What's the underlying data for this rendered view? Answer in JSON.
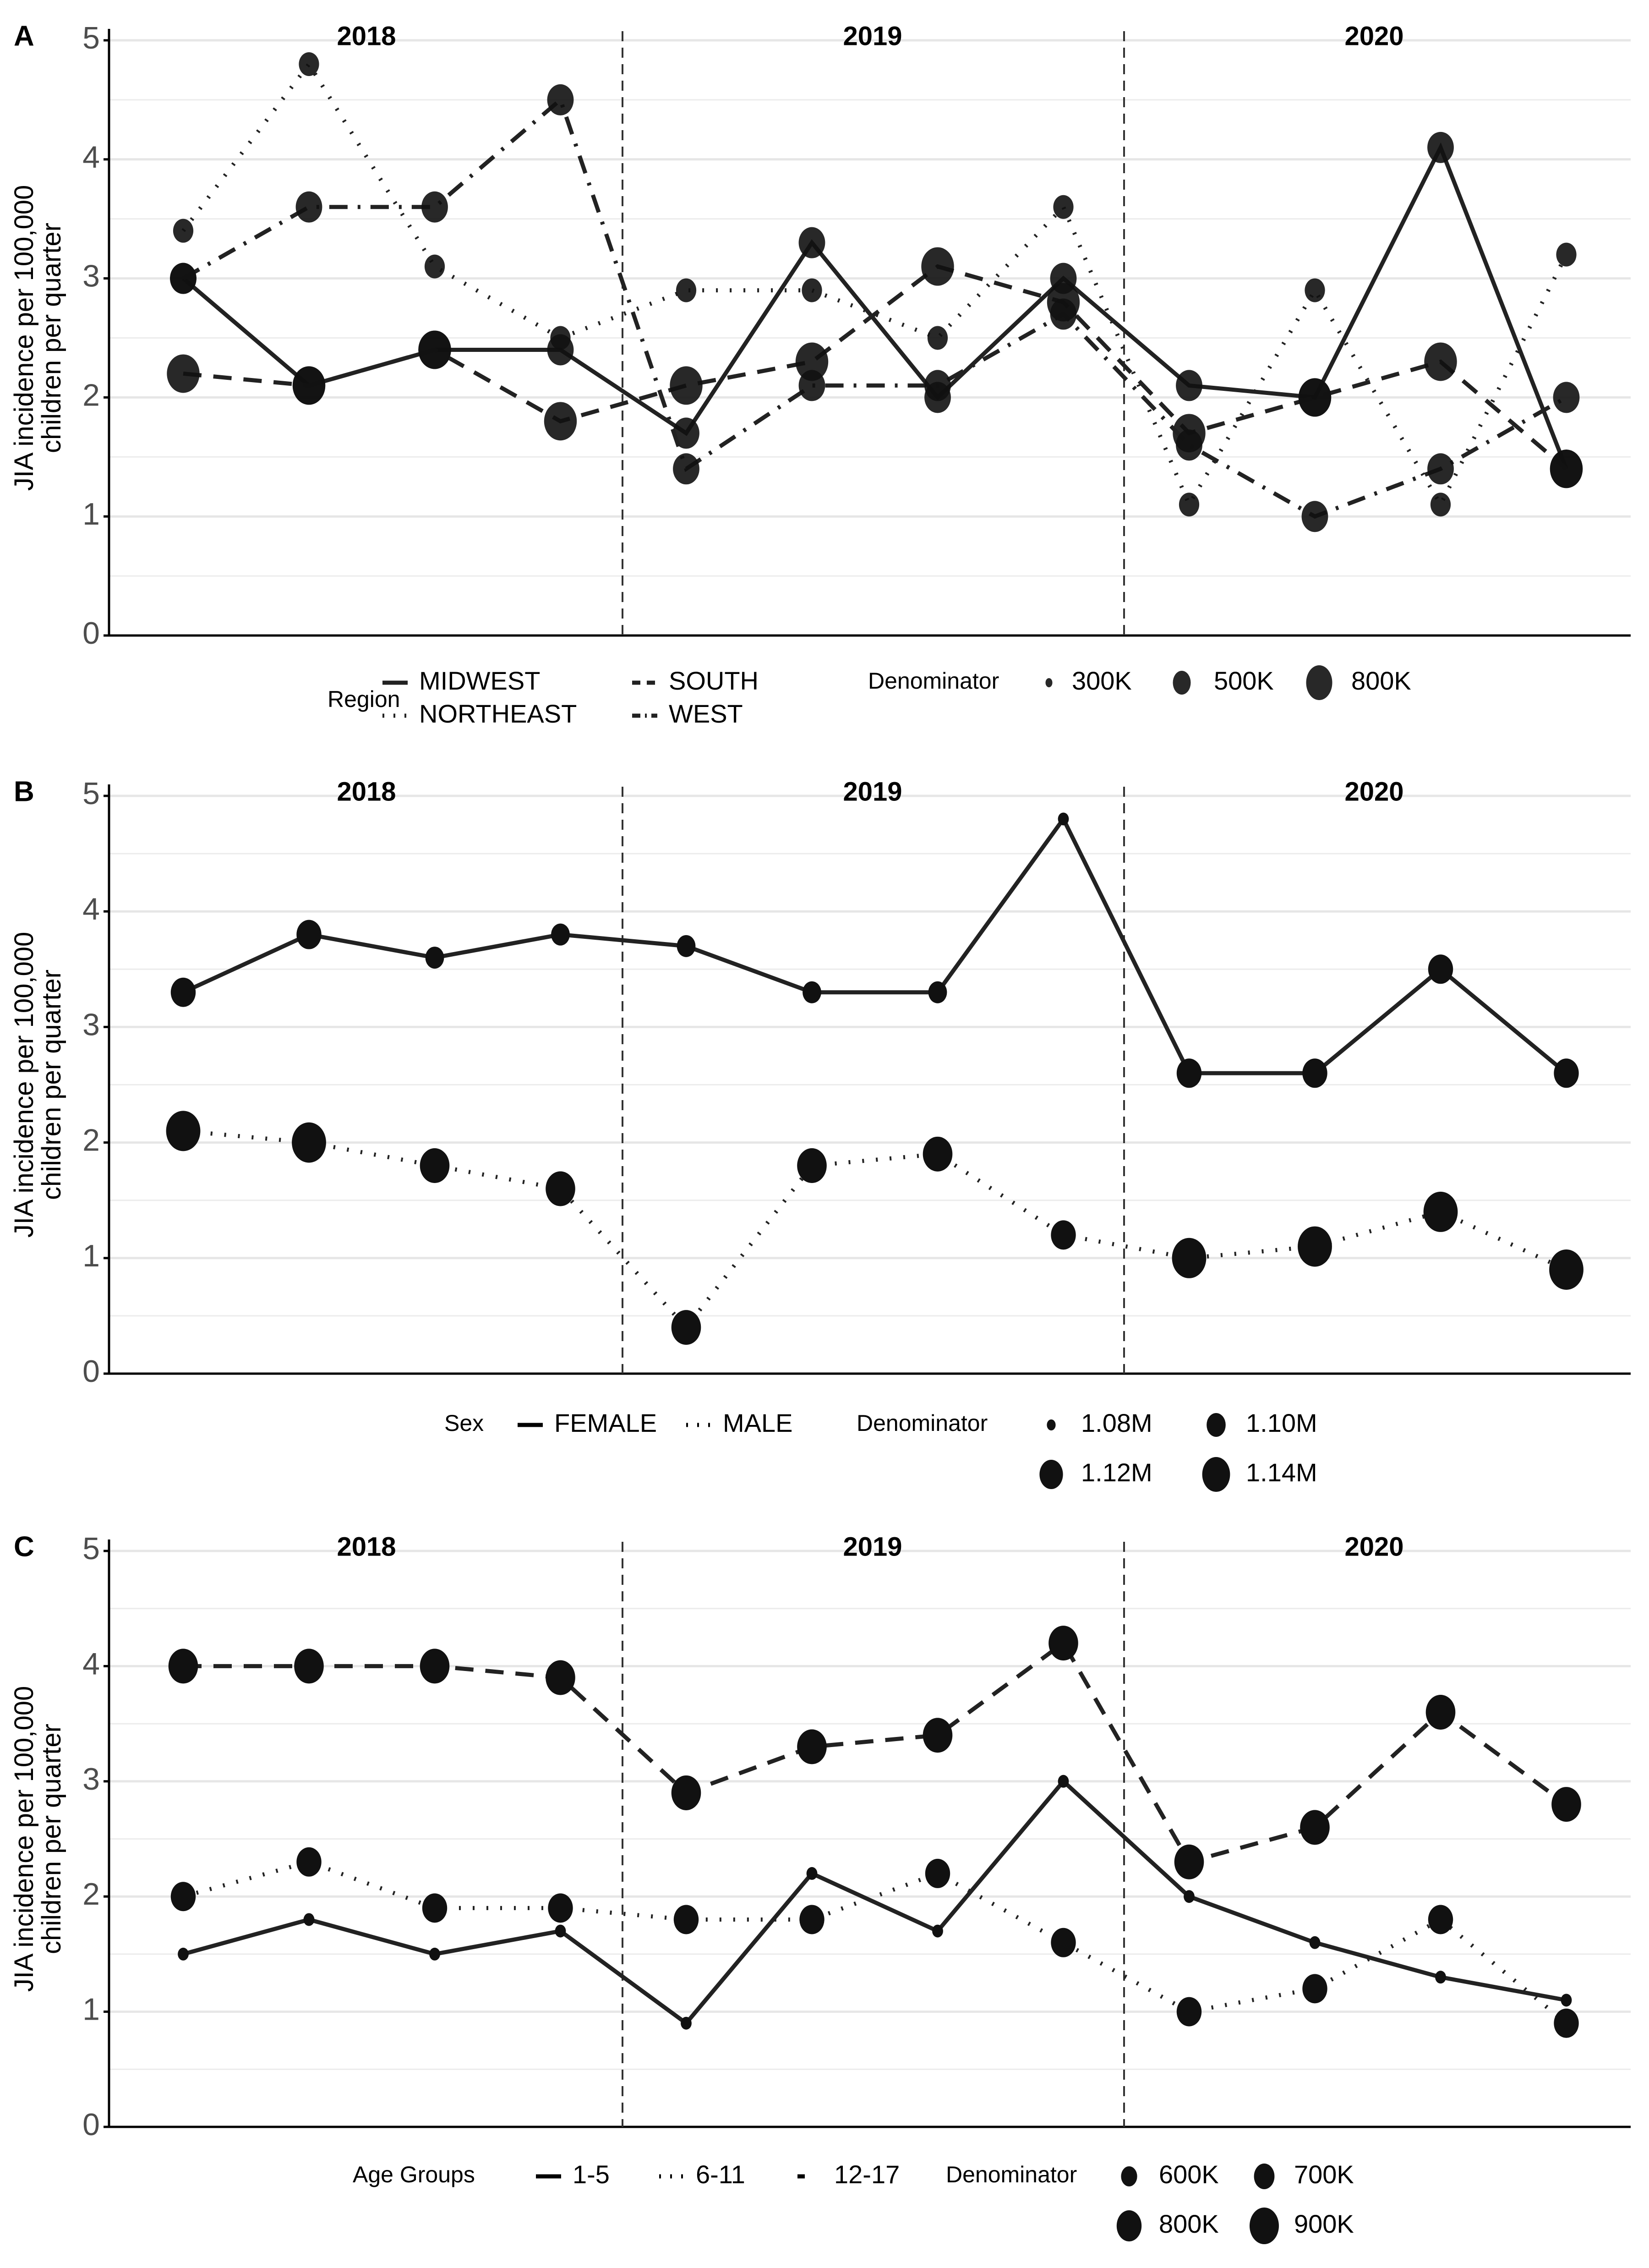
{
  "chart_data": [
    {
      "panel": "A",
      "type": "line",
      "ylabel": "JIA incidence per 100,000 children per quarter",
      "ylim": [
        0,
        5
      ],
      "yticks": [
        "0",
        "1",
        "2",
        "3",
        "4",
        "5"
      ],
      "years": [
        "2018",
        "2019",
        "2020"
      ],
      "x": [
        "2018 Q1",
        "2018 Q2",
        "2018 Q3",
        "2018 Q4",
        "2019 Q1",
        "2019 Q2",
        "2019 Q3",
        "2019 Q4",
        "2020 Q1",
        "2020 Q2",
        "2020 Q3",
        "2020 Q4"
      ],
      "grid": "horizontal",
      "legend_position": "bottom",
      "legend": {
        "group_title": "Region",
        "groups": [
          {
            "name": "MIDWEST",
            "linetype": "solid"
          },
          {
            "name": "NORTHEAST",
            "linetype": "dotted"
          },
          {
            "name": "SOUTH",
            "linetype": "dashed"
          },
          {
            "name": "WEST",
            "linetype": "dotdash"
          }
        ],
        "size_title": "Denominator",
        "sizes": [
          "300K",
          "500K",
          "800K"
        ]
      },
      "series": [
        {
          "name": "MIDWEST",
          "linetype": "solid",
          "values": [
            3.0,
            2.1,
            2.4,
            2.4,
            1.7,
            3.3,
            2.0,
            3.0,
            2.1,
            2.0,
            4.1,
            1.4
          ],
          "size": [
            2,
            3,
            3,
            2,
            2,
            2,
            2,
            2,
            2,
            3,
            2,
            3
          ]
        },
        {
          "name": "NORTHEAST",
          "linetype": "dotted",
          "values": [
            3.4,
            4.8,
            3.1,
            2.5,
            2.9,
            2.9,
            2.5,
            3.6,
            1.1,
            2.9,
            1.1,
            3.2
          ],
          "size": [
            1,
            1,
            1,
            1,
            1,
            1,
            1,
            1,
            1,
            1,
            1,
            1
          ]
        },
        {
          "name": "SOUTH",
          "linetype": "dashed",
          "values": [
            2.2,
            2.1,
            2.4,
            1.8,
            2.1,
            2.3,
            3.1,
            2.8,
            1.7,
            2.0,
            2.3,
            1.4
          ],
          "size": [
            3,
            3,
            3,
            3,
            3,
            3,
            3,
            3,
            3,
            3,
            3,
            3
          ]
        },
        {
          "name": "WEST",
          "linetype": "dotdash",
          "values": [
            3.0,
            3.6,
            3.6,
            4.5,
            1.4,
            2.1,
            2.1,
            2.7,
            1.6,
            1.0,
            1.4,
            2.0
          ],
          "size": [
            2,
            2,
            2,
            2,
            2,
            2,
            2,
            2,
            2,
            2,
            2,
            2
          ]
        }
      ]
    },
    {
      "panel": "B",
      "type": "line",
      "ylabel": "JIA incidence per 100,000 children per quarter",
      "ylim": [
        0,
        5
      ],
      "yticks": [
        "0",
        "1",
        "2",
        "3",
        "4",
        "5"
      ],
      "years": [
        "2018",
        "2019",
        "2020"
      ],
      "x": [
        "2018 Q1",
        "2018 Q2",
        "2018 Q3",
        "2018 Q4",
        "2019 Q1",
        "2019 Q2",
        "2019 Q3",
        "2019 Q4",
        "2020 Q1",
        "2020 Q2",
        "2020 Q3",
        "2020 Q4"
      ],
      "grid": "horizontal",
      "legend_position": "bottom",
      "legend": {
        "group_title": "Sex",
        "groups": [
          {
            "name": "FEMALE",
            "linetype": "solid"
          },
          {
            "name": "MALE",
            "linetype": "dotted"
          }
        ],
        "size_title": "Denominator",
        "sizes": [
          "1.08M",
          "1.10M",
          "1.12M",
          "1.14M"
        ]
      },
      "series": [
        {
          "name": "FEMALE",
          "linetype": "solid",
          "values": [
            3.3,
            3.8,
            3.6,
            3.8,
            3.7,
            3.3,
            3.3,
            4.8,
            2.6,
            2.6,
            3.5,
            2.6
          ],
          "size": [
            2,
            2,
            1,
            1,
            1,
            1,
            1,
            0,
            2,
            2,
            2,
            2
          ]
        },
        {
          "name": "MALE",
          "linetype": "dotted",
          "values": [
            2.1,
            2.0,
            1.8,
            1.6,
            0.4,
            1.8,
            1.9,
            1.2,
            1.0,
            1.1,
            1.4,
            0.9
          ],
          "size": [
            4,
            4,
            3,
            3,
            3,
            3,
            3,
            2,
            4,
            4,
            4,
            4
          ]
        }
      ]
    },
    {
      "panel": "C",
      "type": "line",
      "ylabel": "JIA incidence per 100,000 children per quarter",
      "ylim": [
        0,
        5
      ],
      "yticks": [
        "0",
        "1",
        "2",
        "3",
        "4",
        "5"
      ],
      "years": [
        "2018",
        "2019",
        "2020"
      ],
      "x": [
        "2018 Q1",
        "2018 Q2",
        "2018 Q3",
        "2018 Q4",
        "2019 Q1",
        "2019 Q2",
        "2019 Q3",
        "2019 Q4",
        "2020 Q1",
        "2020 Q2",
        "2020 Q3",
        "2020 Q4"
      ],
      "grid": "horizontal",
      "legend_position": "bottom",
      "legend": {
        "group_title": "Age Groups",
        "groups": [
          {
            "name": "1-5",
            "linetype": "solid"
          },
          {
            "name": "6-11",
            "linetype": "dotted"
          },
          {
            "name": "12-17",
            "linetype": "dashed"
          }
        ],
        "size_title": "Denominator",
        "sizes": [
          "600K",
          "700K",
          "800K",
          "900K"
        ]
      },
      "series": [
        {
          "name": "1-5",
          "linetype": "solid",
          "values": [
            1.5,
            1.8,
            1.5,
            1.7,
            0.9,
            2.2,
            1.7,
            3.0,
            2.0,
            1.6,
            1.3,
            1.1
          ],
          "size": [
            0,
            0,
            0,
            0,
            0,
            0,
            0,
            0,
            0,
            0,
            0,
            0
          ]
        },
        {
          "name": "6-11",
          "linetype": "dotted",
          "values": [
            2.0,
            2.3,
            1.9,
            1.9,
            1.8,
            1.8,
            2.2,
            1.6,
            1.0,
            1.2,
            1.8,
            0.9
          ],
          "size": [
            2,
            2,
            2,
            2,
            2,
            2,
            2,
            2,
            2,
            2,
            2,
            2
          ]
        },
        {
          "name": "12-17",
          "linetype": "dashed",
          "values": [
            4.0,
            4.0,
            4.0,
            3.9,
            2.9,
            3.3,
            3.4,
            4.2,
            2.3,
            2.6,
            3.6,
            2.8
          ],
          "size": [
            3,
            3,
            3,
            3,
            3,
            3,
            3,
            3,
            3,
            3,
            3,
            3
          ]
        }
      ]
    }
  ]
}
